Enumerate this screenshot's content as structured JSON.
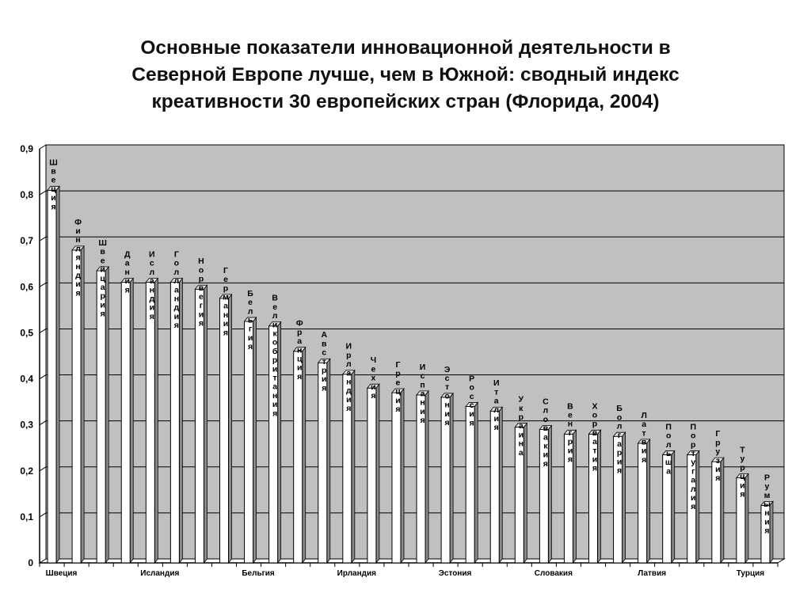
{
  "title_lines": [
    "Основные показатели инновационной деятельности в",
    "Северной Европе лучше, чем в Южной: сводный индекс",
    "креативности 30 европейских стран (Флорида, 2004)"
  ],
  "chart_data": {
    "type": "bar",
    "title": "Основные показатели инновационной деятельности в Северной Европе лучше, чем в Южной: сводный индекс креативности 30 европейских стран (Флорида, 2004)",
    "categories": [
      "Швеция",
      "Финляндия",
      "Швейцария",
      "Дания",
      "Исландия",
      "Голландия",
      "Норвегия",
      "Германия",
      "Бельгия",
      "Великобритания",
      "Франция",
      "Австрия",
      "Ирландия",
      "Чехия",
      "Греция",
      "Испания",
      "Эстония",
      "Россия",
      "Италия",
      "Украина",
      "Словакия",
      "Венгрия",
      "Хорватия",
      "Болгария",
      "Латвия",
      "Польша",
      "Португалия",
      "Грузия",
      "Турция",
      "Румыния"
    ],
    "values": [
      0.81,
      0.68,
      0.635,
      0.61,
      0.61,
      0.61,
      0.595,
      0.575,
      0.525,
      0.515,
      0.46,
      0.435,
      0.41,
      0.38,
      0.37,
      0.365,
      0.36,
      0.34,
      0.33,
      0.295,
      0.29,
      0.28,
      0.28,
      0.275,
      0.26,
      0.235,
      0.235,
      0.22,
      0.185,
      0.125
    ],
    "x_tick_labels": [
      "Швеция",
      "Исландия",
      "Бельгия",
      "Ирландия",
      "Эстония",
      "Словакия",
      "Латвия",
      "Турция"
    ],
    "y_tick_labels": [
      "0",
      "0,1",
      "0,2",
      "0,3",
      "0,4",
      "0,5",
      "0,6",
      "0,7",
      "0,8",
      "0,9"
    ],
    "ylim": [
      0,
      0.9
    ],
    "grid": true,
    "legend": false,
    "colors": {
      "plot_background": "#c0c0c0",
      "bar_front": "#ffffff",
      "bar_top": "#e2e2e2",
      "bar_side": "#8a8a8a",
      "gridline": "#000000"
    }
  }
}
